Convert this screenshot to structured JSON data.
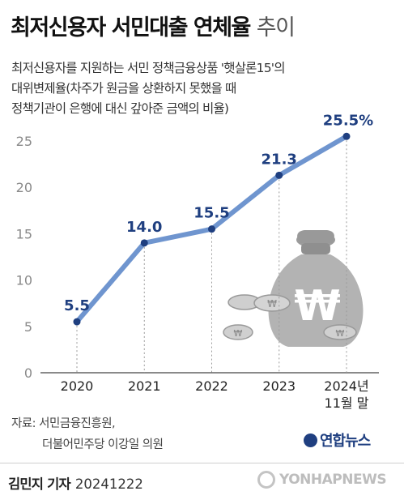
{
  "title": "최저신용자 서민대출 연체율",
  "title_suffix": "추이",
  "description": [
    "최저신용자를 지원하는 서민 정책금융상품 '햇살론15'의",
    "대위변제율(차주가 원금을 상환하지 못했을 때",
    "정책기관이 은행에 대신 갚아준 금액의 비율)"
  ],
  "chart_data": {
    "type": "line",
    "categories": [
      "2020",
      "2021",
      "2022",
      "2023",
      "2024년 11월 말"
    ],
    "x_tick_labels": [
      [
        "2020"
      ],
      [
        "2021"
      ],
      [
        "2022"
      ],
      [
        "2023"
      ],
      [
        "2024년",
        "11월 말"
      ]
    ],
    "values": [
      5.5,
      14.0,
      15.5,
      21.3,
      25.5
    ],
    "data_labels": [
      "5.5",
      "14.0",
      "15.5",
      "21.3",
      "25.5%"
    ],
    "yticks": [
      0,
      5,
      10,
      15,
      20,
      25
    ],
    "ylim": [
      0,
      25
    ],
    "grid": false,
    "line_color": "#6f95cf",
    "label_color": "#1f3f80",
    "title": "",
    "xlabel": "",
    "ylabel": ""
  },
  "source": {
    "line1": "자료: 서민금융진흥원,",
    "line2": "더불어민주당 이강일 의원"
  },
  "logo": "연합뉴스",
  "credit": {
    "author": "김민지 기자",
    "date": "20241222"
  },
  "watermark": "YONHAPNEWS",
  "colors": {
    "accent": "#1f3f80",
    "line": "#6f95cf",
    "illustration": "#9a9a9a"
  }
}
